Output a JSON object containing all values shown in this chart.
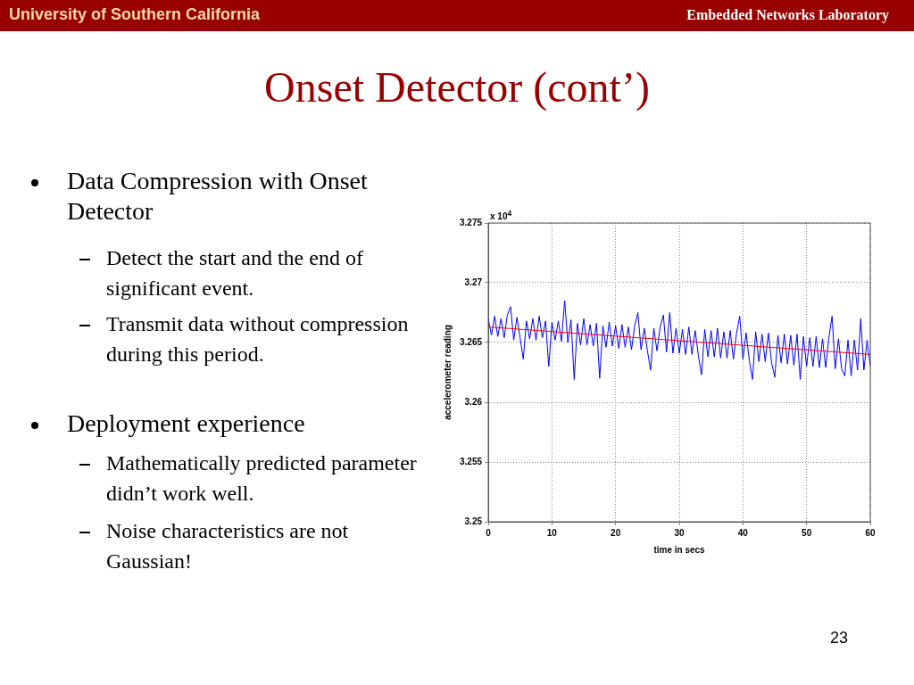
{
  "chart_data": {
    "type": "line",
    "title": "Onset Detector (cont’)",
    "xlabel": "time in secs",
    "ylabel": "accelerometer reading",
    "annotations": [
      "University of Southern California",
      "Embedded Networks Laboratory",
      "Data Compression with Onset Detector",
      "Detect the start and the end of significant event.",
      "Transmit data without compression during this period.",
      "Deployment experience",
      "Mathematically predicted parameter didn’t work well.",
      "Noise characteristics are not Gaussian!",
      "23",
      "x 10$^{4}$"
    ],
    "xlim": [
      0,
      60
    ],
    "xticks": [
      0,
      10,
      20,
      30,
      40,
      50,
      60
    ],
    "ylim": [
      3.25,
      3.275
    ],
    "yticks": [
      3.25,
      3.255,
      3.26,
      3.265,
      3.27,
      3.275
    ],
    "grid": true,
    "marker": "none",
    "line_style": "solid",
    "series": [
      {
        "color": "#0000ff",
        "x": [
          0,
          0.5,
          1,
          1.5,
          2,
          2.5,
          3,
          3.5,
          4,
          4.5,
          5,
          5.5,
          6,
          6.5,
          7,
          7.5,
          8,
          8.5,
          9,
          9.5,
          10,
          10.5,
          11,
          11.5,
          12,
          12.5,
          13,
          13.5,
          14,
          14.5,
          15,
          15.5,
          16,
          16.5,
          17,
          17.5,
          18,
          18.5,
          19,
          19.5,
          20,
          20.5,
          21,
          21.5,
          22,
          22.5,
          23,
          23.5,
          24,
          24.5,
          25,
          25.5,
          26,
          26.5,
          27,
          27.5,
          28,
          28.5,
          29,
          29.5,
          30,
          30.5,
          31,
          31.5,
          32,
          32.5,
          33,
          33.5,
          34,
          34.5,
          35,
          35.5,
          36,
          36.5,
          37,
          37.5,
          38,
          38.5,
          39,
          39.5,
          40,
          40.5,
          41,
          41.5,
          42,
          42.5,
          43,
          43.5,
          44,
          44.5,
          45,
          45.5,
          46,
          46.5,
          47,
          47.5,
          48,
          48.5,
          49,
          49.5,
          50,
          50.5,
          51,
          51.5,
          52,
          52.5,
          53,
          53.5,
          54,
          54.5,
          55,
          55.5,
          56,
          56.5,
          57,
          57.5,
          58,
          58.5,
          59,
          59.5,
          60
        ],
        "values": [
          3.267,
          3.2656,
          3.2672,
          3.2655,
          3.267,
          3.2654,
          3.2673,
          3.268,
          3.2652,
          3.2671,
          3.2654,
          3.2636,
          3.2668,
          3.2653,
          3.267,
          3.2652,
          3.2672,
          3.2654,
          3.2668,
          3.263,
          3.2667,
          3.2652,
          3.2668,
          3.2651,
          3.2685,
          3.265,
          3.2669,
          3.2619,
          3.2666,
          3.2648,
          3.267,
          3.2648,
          3.2665,
          3.2647,
          3.2666,
          3.262,
          3.2664,
          3.2646,
          3.2667,
          3.2647,
          3.2664,
          3.2645,
          3.2665,
          3.2646,
          3.2663,
          3.2644,
          3.2664,
          3.2675,
          3.2644,
          3.2662,
          3.2643,
          3.2627,
          3.2662,
          3.2643,
          3.2663,
          3.2673,
          3.2642,
          3.2675,
          3.2641,
          3.2662,
          3.2641,
          3.2661,
          3.264,
          3.2663,
          3.264,
          3.266,
          3.2639,
          3.2623,
          3.2661,
          3.2638,
          3.266,
          3.2638,
          3.2662,
          3.2637,
          3.2659,
          3.2637,
          3.266,
          3.2636,
          3.2658,
          3.2672,
          3.2636,
          3.2658,
          3.2635,
          3.2619,
          3.2659,
          3.2634,
          3.2657,
          3.2634,
          3.2658,
          3.2633,
          3.2621,
          3.2656,
          3.2633,
          3.2657,
          3.2632,
          3.2656,
          3.2631,
          3.2657,
          3.2619,
          3.2655,
          3.263,
          3.2654,
          3.263,
          3.2655,
          3.2629,
          3.2653,
          3.2629,
          3.2654,
          3.2672,
          3.2628,
          3.2653,
          3.2628,
          3.2622,
          3.2652,
          3.2622,
          3.2652,
          3.2627,
          3.267,
          3.2627,
          3.2652,
          3.263
        ]
      },
      {
        "type": "line",
        "color": "#ff0000",
        "x": [
          0,
          60
        ],
        "values": [
          3.2663,
          3.264
        ]
      }
    ]
  }
}
